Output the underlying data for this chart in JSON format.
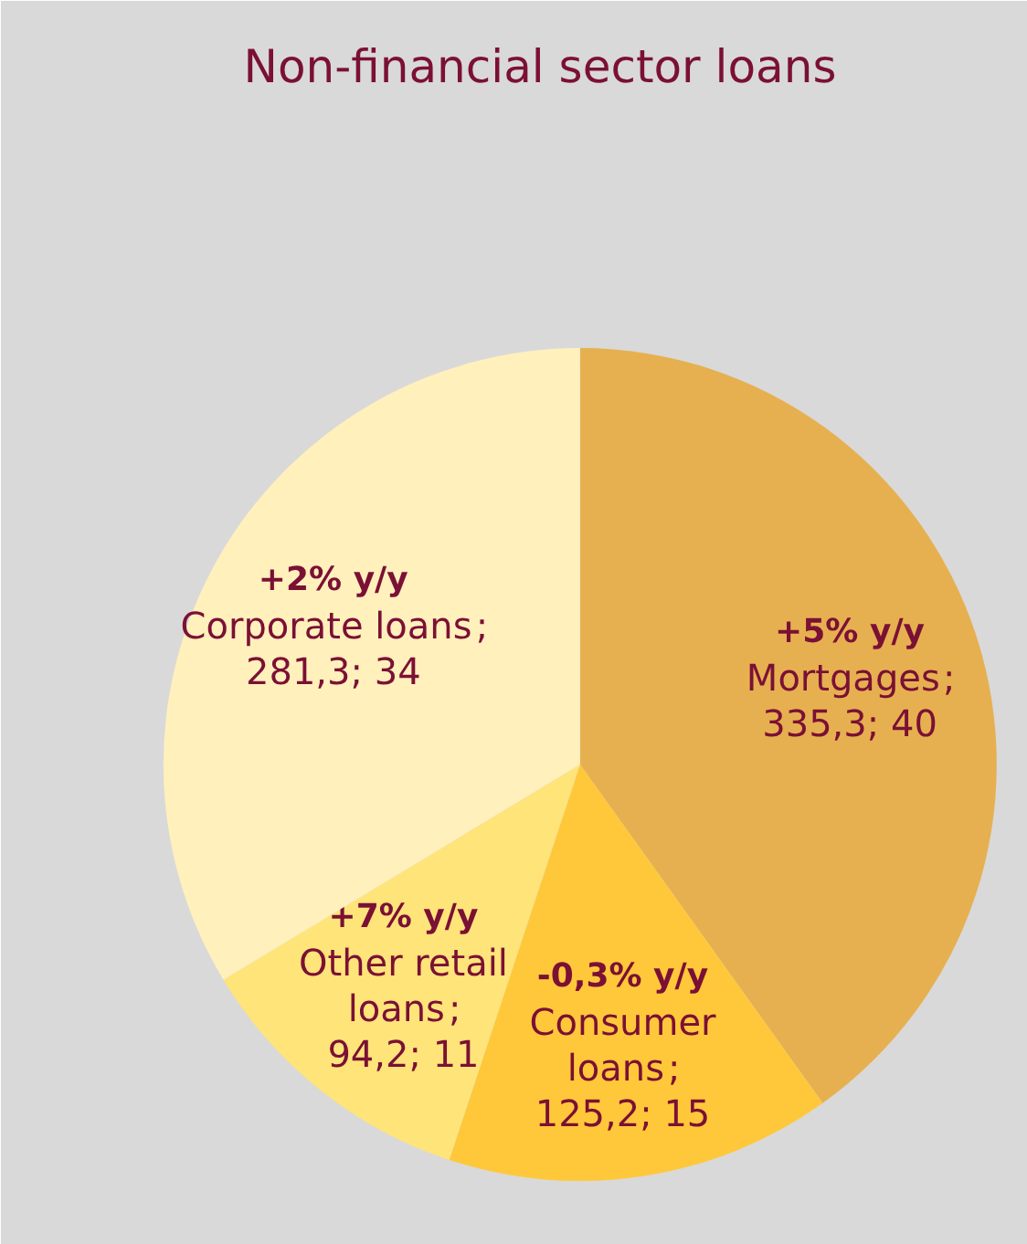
{
  "chart_data": {
    "type": "pie",
    "title": "Non-financial sector loans",
    "categories": [
      "Mortgages",
      "Consumer loans",
      "Other retail loans",
      "Corporate loans"
    ],
    "values": [
      335.3,
      125.2,
      94.2,
      281.3
    ],
    "value_labels": [
      "; 335,3; 40",
      "; 125,2; 15",
      "; 94,2; 11",
      "; 281,3; 34"
    ],
    "colors": [
      "#e6b050",
      "#ffc83a",
      "#ffe47a",
      "#fff0bc"
    ],
    "annotations": [
      {
        "text": "+5% y/y",
        "x": "Mortgages"
      },
      {
        "text": "-0,3% y/y",
        "x": "Consumer loans"
      },
      {
        "text": "+7% y/y",
        "x": "Other retail loans"
      },
      {
        "text": "+2% y/y",
        "x": "Corporate loans"
      }
    ]
  }
}
